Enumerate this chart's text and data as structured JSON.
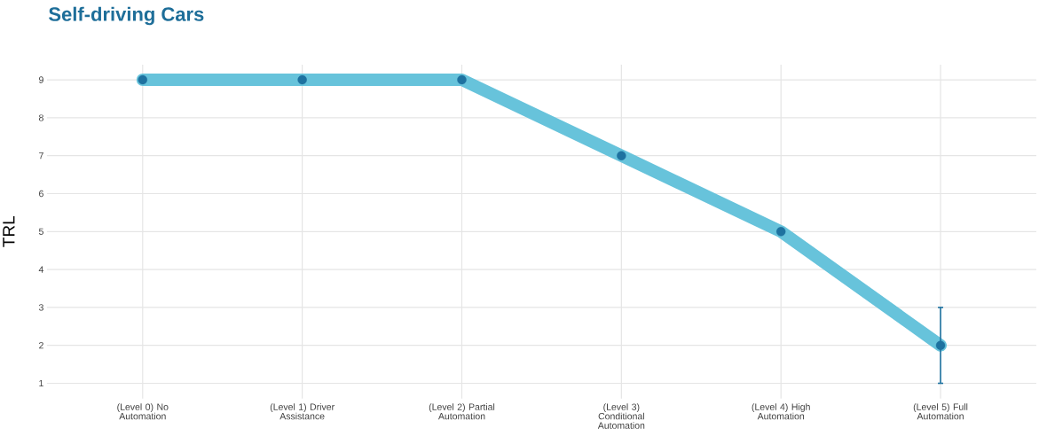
{
  "chart_data": {
    "type": "line",
    "title": "Self-driving Cars",
    "ylabel": "TRL",
    "categories": [
      "(Level 0) No Automation",
      "(Level 1) Driver Assistance",
      "(Level 2) Partial Automation",
      "(Level 3) Conditional Automation",
      "(Level 4) High Automation",
      "(Level 5) Full Automation"
    ],
    "series": [
      {
        "color": "#67c3db",
        "marker": "none",
        "values": [
          9,
          9,
          9,
          7,
          5,
          2
        ]
      },
      {
        "type": "scatter",
        "color": "#1e72a0",
        "marker": "circle",
        "values": [
          9,
          9,
          9,
          7,
          5,
          2
        ],
        "errors": [
          null,
          null,
          null,
          null,
          null,
          [
            1,
            3
          ]
        ]
      }
    ],
    "ylim": [
      0.6,
      9.4
    ],
    "yticks": [
      1,
      2,
      3,
      4,
      5,
      6,
      7,
      8,
      9
    ],
    "grid": true
  }
}
